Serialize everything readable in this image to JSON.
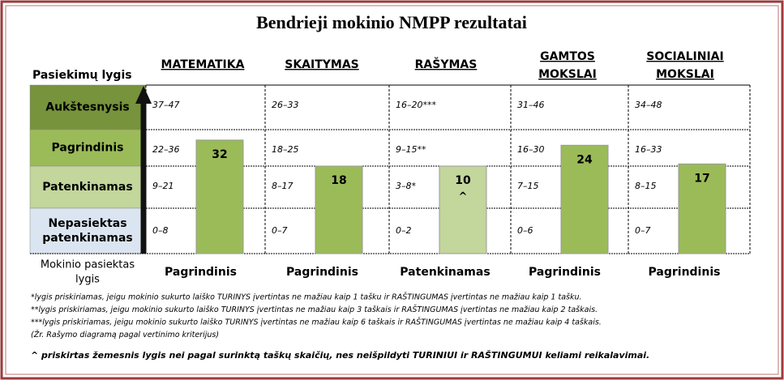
{
  "title": "Bendrieji mokinio NMPP rezultatai",
  "level_header": "Pasiekimų lygis",
  "levels": [
    [
      "Aukštesnysis"
    ],
    [
      "Pagrindinis"
    ],
    [
      "Patenkinamas"
    ],
    [
      "Nepasiektas",
      "patenkinamas"
    ]
  ],
  "subjects": [
    {
      "name": [
        "MATEMATIKA"
      ],
      "ranges": [
        "37–47",
        "22–36",
        "9–21",
        "0–8"
      ],
      "score": 32,
      "result": "Pagrindinis"
    },
    {
      "name": [
        "SKAITYMAS"
      ],
      "ranges": [
        "26–33",
        "18–25",
        "8–17",
        "0–7"
      ],
      "score": 18,
      "result": "Pagrindinis"
    },
    {
      "name": [
        "RAŠYMAS"
      ],
      "ranges": [
        "16–20***",
        "9–15**",
        "3–8*",
        "0–2"
      ],
      "score": 10,
      "score_note": "^",
      "result": "Patenkinamas"
    },
    {
      "name": [
        "GAMTOS",
        "MOKSLAI"
      ],
      "ranges": [
        "31–46",
        "16–30",
        "7–15",
        "0–6"
      ],
      "score": 24,
      "result": "Pagrindinis"
    },
    {
      "name": [
        "SOCIALINIAI",
        "MOKSLAI"
      ],
      "ranges": [
        "34–48",
        "16–33",
        "8–15",
        "0–7"
      ],
      "score": 17,
      "result": "Pagrindinis"
    }
  ],
  "result_header": [
    "Mokinio pasiektas",
    "lygis"
  ],
  "footnotes": [
    "*lygis priskiriamas, jeigu mokinio sukurto laiško TURINYS įvertintas ne mažiau kaip 1 tašku ir RAŠTINGUMAS įvertintas ne mažiau kaip 1 tašku.",
    "**lygis priskiriamas, jeigu mokinio sukurto laiško TURINYS įvertintas ne mažiau kaip 3 taškais ir RAŠTINGUMAS įvertintas ne mažiau kaip 2 taškais.",
    "***lygis priskiriamas, jeigu mokinio sukurto laiško TURINYS įvertintas ne mažiau kaip 6 taškais ir RAŠTINGUMAS įvertintas ne mažiau kaip 4 taškais.",
    "(Žr. Rašymo diagramą pagal vertinimo kriterijus)"
  ],
  "note": "^ priskirtas žemesnis lygis nei pagal surinktą taškų skaičių, nes neišpildyti TURINIUI ir RAŠTINGUMUI keliami reikalavimai."
}
